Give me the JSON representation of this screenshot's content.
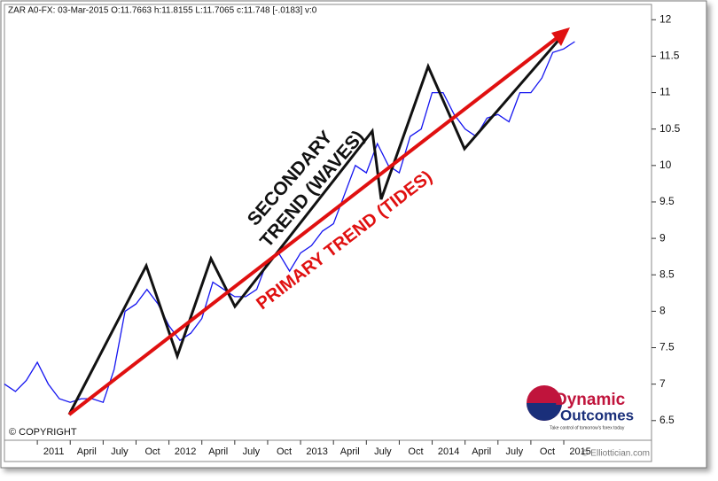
{
  "chart_data": {
    "type": "line",
    "title": "ZAR A0-FX:  03-Mar-2015  O:11.7663 h:11.8155 L:11.7065 c:11.748 [-.0183] v:0",
    "x": [
      "2010-10",
      "2010-11",
      "2010-12",
      "2011-01",
      "2011-02",
      "2011-03",
      "2011-04",
      "2011-05",
      "2011-06",
      "2011-07",
      "2011-08",
      "2011-09",
      "2011-10",
      "2011-11",
      "2011-12",
      "2012-01",
      "2012-02",
      "2012-03",
      "2012-04",
      "2012-05",
      "2012-06",
      "2012-07",
      "2012-08",
      "2012-09",
      "2012-10",
      "2012-11",
      "2012-12",
      "2013-01",
      "2013-02",
      "2013-03",
      "2013-04",
      "2013-05",
      "2013-06",
      "2013-07",
      "2013-08",
      "2013-09",
      "2013-10",
      "2013-11",
      "2013-12",
      "2014-01",
      "2014-02",
      "2014-03",
      "2014-04",
      "2014-05",
      "2014-06",
      "2014-07",
      "2014-08",
      "2014-09",
      "2014-10",
      "2014-11",
      "2014-12",
      "2015-01",
      "2015-02"
    ],
    "values": [
      7.0,
      6.9,
      7.05,
      7.3,
      7.0,
      6.8,
      6.75,
      6.8,
      6.8,
      6.75,
      7.2,
      8.0,
      8.1,
      8.3,
      8.1,
      7.8,
      7.6,
      7.7,
      7.9,
      8.4,
      8.3,
      8.2,
      8.2,
      8.3,
      8.7,
      8.8,
      8.55,
      8.8,
      8.9,
      9.1,
      9.2,
      9.6,
      10.0,
      9.9,
      10.3,
      10.0,
      9.9,
      10.4,
      10.5,
      11.0,
      11.0,
      10.7,
      10.5,
      10.4,
      10.65,
      10.7,
      10.6,
      11.0,
      11.0,
      11.2,
      11.55,
      11.6,
      11.7
    ],
    "color": "#1414f0",
    "xlim": [
      "2010-10",
      "2015-09"
    ],
    "xticks": [
      {
        "value": "2011-01",
        "label": "2011"
      },
      {
        "value": "2011-04",
        "label": "April"
      },
      {
        "value": "2011-07",
        "label": "July"
      },
      {
        "value": "2011-10",
        "label": "Oct"
      },
      {
        "value": "2012-01",
        "label": "2012"
      },
      {
        "value": "2012-04",
        "label": "April"
      },
      {
        "value": "2012-07",
        "label": "July"
      },
      {
        "value": "2012-10",
        "label": "Oct"
      },
      {
        "value": "2013-01",
        "label": "2013"
      },
      {
        "value": "2013-04",
        "label": "April"
      },
      {
        "value": "2013-07",
        "label": "July"
      },
      {
        "value": "2013-10",
        "label": "Oct"
      },
      {
        "value": "2014-01",
        "label": "2014"
      },
      {
        "value": "2014-04",
        "label": "April"
      },
      {
        "value": "2014-07",
        "label": "July"
      },
      {
        "value": "2014-10",
        "label": "Oct"
      },
      {
        "value": "2015-01",
        "label": "2015"
      }
    ],
    "ylim": [
      6.23,
      12.21
    ],
    "yticks": [
      6.5,
      7,
      7.5,
      8,
      8.5,
      9,
      9.5,
      10,
      10.5,
      11,
      11.5,
      12
    ],
    "y_axis_side": "right",
    "annotations": {
      "secondary": [
        "SECONDARY",
        "TREND (WAVES)"
      ],
      "primary": "PRIMARY TREND (TIDES)"
    }
  },
  "copyright": "© COPYRIGHT",
  "watermark": "© Elliottician.com",
  "logo": {
    "line1": "Dynamic",
    "line2": "Outcomes",
    "tagline": "Take control of tomorrow's forex today"
  }
}
